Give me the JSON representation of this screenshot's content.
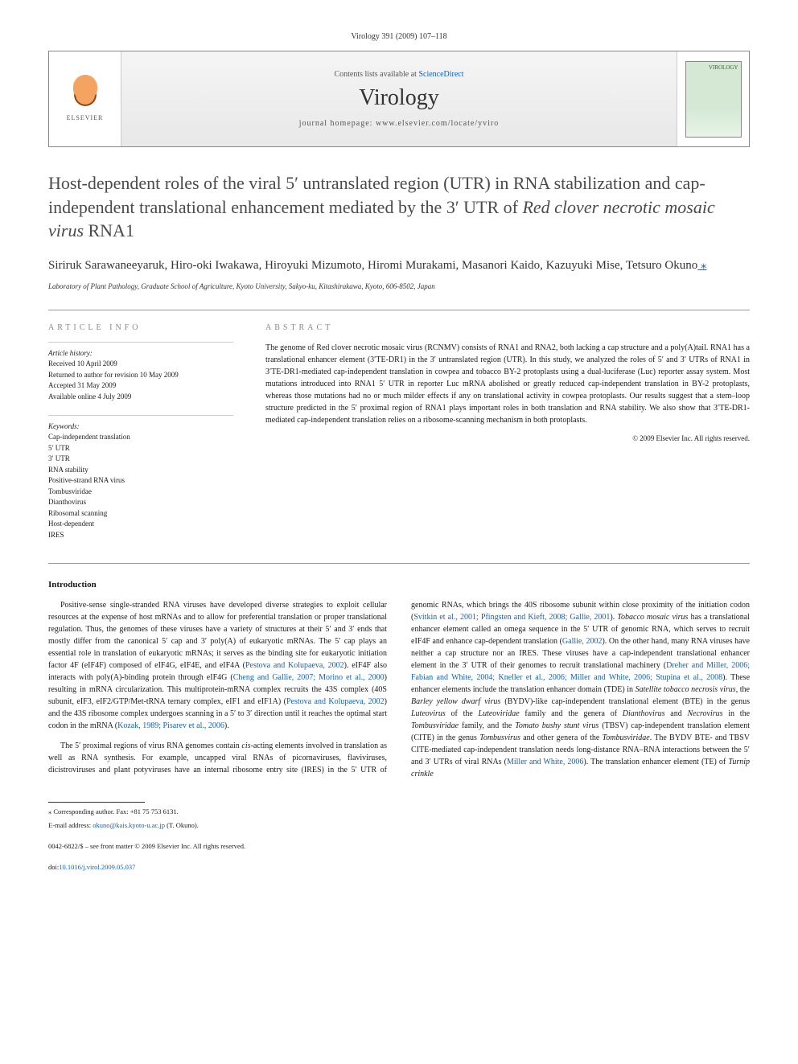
{
  "page_header": "Virology 391 (2009) 107–118",
  "banner": {
    "contents_prefix": "Contents lists available at ",
    "contents_link": "ScienceDirect",
    "journal_name": "Virology",
    "homepage_prefix": "journal homepage: ",
    "homepage_url": "www.elsevier.com/locate/yviro",
    "publisher_label": "ELSEVIER",
    "cover_label": "VIROLOGY"
  },
  "title_parts": {
    "pre": "Host-dependent roles of the viral 5′ untranslated region (UTR) in RNA stabilization and cap-independent translational enhancement mediated by the 3′ UTR of ",
    "italic": "Red clover necrotic mosaic virus",
    "post": " RNA1"
  },
  "authors": "Siriruk Sarawaneeyaruk, Hiro-oki Iwakawa, Hiroyuki Mizumoto, Hiromi Murakami, Masanori Kaido, Kazuyuki Mise, Tetsuro Okuno",
  "corr_author_marker": " ⁎",
  "affiliation": "Laboratory of Plant Pathology, Graduate School of Agriculture, Kyoto University, Sakyo-ku, Kitashirakawa, Kyoto, 606-8502, Japan",
  "article_info_label": "ARTICLE INFO",
  "abstract_label": "ABSTRACT",
  "history": {
    "label": "Article history:",
    "lines": [
      "Received 10 April 2009",
      "Returned to author for revision 10 May 2009",
      "Accepted 31 May 2009",
      "Available online 4 July 2009"
    ]
  },
  "keywords": {
    "label": "Keywords:",
    "items": [
      "Cap-independent translation",
      "5′ UTR",
      "3′ UTR",
      "RNA stability",
      "Positive-strand RNA virus",
      "Tombusviridae",
      "Dianthovirus",
      "Ribosomal scanning",
      "Host-dependent",
      "IRES"
    ]
  },
  "abstract": "The genome of Red clover necrotic mosaic virus (RCNMV) consists of RNA1 and RNA2, both lacking a cap structure and a poly(A)tail. RNA1 has a translational enhancer element (3′TE-DR1) in the 3′ untranslated region (UTR). In this study, we analyzed the roles of 5′ and 3′ UTRs of RNA1 in 3′TE-DR1-mediated cap-independent translation in cowpea and tobacco BY-2 protoplasts using a dual-luciferase (Luc) reporter assay system. Most mutations introduced into RNA1 5′ UTR in reporter Luc mRNA abolished or greatly reduced cap-independent translation in BY-2 protoplasts, whereas those mutations had no or much milder effects if any on translational activity in cowpea protoplasts. Our results suggest that a stem–loop structure predicted in the 5′ proximal region of RNA1 plays important roles in both translation and RNA stability. We also show that 3′TE-DR1-mediated cap-independent translation relies on a ribosome-scanning mechanism in both protoplasts.",
  "abstract_copyright": "© 2009 Elsevier Inc. All rights reserved.",
  "intro_heading": "Introduction",
  "intro_p1_pre": "Positive-sense single-stranded RNA viruses have developed diverse strategies to exploit cellular resources at the expense of host mRNAs and to allow for preferential translation or proper translational regulation. Thus, the genomes of these viruses have a variety of structures at their 5′ and 3′ ends that mostly differ from the canonical 5′ cap and 3′ poly(A) of eukaryotic mRNAs. The 5′ cap plays an essential role in translation of eukaryotic mRNAs; it serves as the binding site for eukaryotic initiation factor 4F (eIF4F) composed of eIF4G, eIF4E, and eIF4A (",
  "intro_p1_ref1": "Pestova and Kolupaeva, 2002",
  "intro_p1_mid1": "). eIF4F also interacts with poly(A)-binding protein through eIF4G (",
  "intro_p1_ref2": "Cheng and Gallie, 2007; Morino et al., 2000",
  "intro_p1_mid2": ") resulting in mRNA circularization. This multiprotein-mRNA complex recruits the 43S complex (40S subunit, eIF3, eIF2/GTP/Met-tRNA ternary complex, eIF1 and eIF1A) (",
  "intro_p1_ref3": "Pestova and Kolupaeva, 2002",
  "intro_p1_mid3": ") and the 43S ribosome complex undergoes scanning in a 5′ to 3′ direction until it reaches the optimal start codon in the mRNA (",
  "intro_p1_ref4": "Kozak, 1989; Pisarev et al., 2006",
  "intro_p1_end": ").",
  "intro_p2_pre": "The 5′ proximal regions of virus RNA genomes contain ",
  "intro_p2_cis": "cis",
  "intro_p2_mid": "-acting elements involved in translation as well as RNA synthesis. For example, uncapped viral RNAs of picornaviruses, flaviviruses, dicistroviruses and plant potyviruses have an internal ribosome entry site (IRES) in the 5′ UTR of genomic RNAs, which brings the 40S ribosome subunit within close proximity of the initiation codon (",
  "intro_p2_ref1": "Svitkin et al., 2001; Pfingsten and Kieft, 2008; Gallie, 2001",
  "intro_p2_mid2": "). ",
  "intro_p2_tmv": "Tobacco mosaic virus",
  "intro_p2_mid3": " has a translational enhancer element called an omega sequence in the 5′ UTR of genomic RNA, which serves to recruit eIF4F and enhance cap-dependent translation (",
  "intro_p2_ref2": "Gallie, 2002",
  "intro_p2_mid4": "). On the other hand, many RNA viruses have neither a cap structure nor an IRES. These viruses have a cap-independent translational enhancer element in the 3′ UTR of their genomes to recruit translational machinery (",
  "intro_p2_ref3": "Dreher and Miller, 2006; Fabian and White, 2004; Kneller et al., 2006; Miller and White, 2006; Stupina et al., 2008",
  "intro_p2_mid5": "). These enhancer elements include the translation enhancer domain (TDE) in ",
  "intro_p2_stnv": "Satellite tobacco necrosis virus",
  "intro_p2_mid6": ", the ",
  "intro_p2_bydv": "Barley yellow dwarf virus",
  "intro_p2_mid7": " (BYDV)-like cap-independent translational element (BTE) in the genus ",
  "intro_p2_luteo": "Luteovirus",
  "intro_p2_mid8": " of the ",
  "intro_p2_luteofam": "Luteoviridae",
  "intro_p2_mid9": " family and the genera of ",
  "intro_p2_diantho": "Dianthovirus",
  "intro_p2_mid10": " and ",
  "intro_p2_necro": "Necrovirus",
  "intro_p2_mid11": " in the ",
  "intro_p2_tombusfam": "Tombusviridae",
  "intro_p2_mid12": " family, and the ",
  "intro_p2_tbsv": "Tomato bushy stunt virus",
  "intro_p2_mid13": " (TBSV) cap-independent translation element (CITE) in the genus ",
  "intro_p2_tombus": "Tombusvirus",
  "intro_p2_mid14": " and other genera of the ",
  "intro_p2_tombusfam2": "Tombusviridae",
  "intro_p2_mid15": ". The BYDV BTE- and TBSV CITE-mediated cap-independent translation needs long-distance RNA–RNA interactions between the 5′ and 3′ UTRs of viral RNAs (",
  "intro_p2_ref4": "Miller and White, 2006",
  "intro_p2_mid16": "). The translation enhancer element (TE) of ",
  "intro_p2_tcv": "Turnip crinkle",
  "footnote_corr": "⁎ Corresponding author. Fax: +81 75 753 6131.",
  "footnote_email_label": "E-mail address: ",
  "footnote_email": "okuno@kais.kyoto-u.ac.jp",
  "footnote_email_suffix": " (T. Okuno).",
  "bottom_copyright": "0042-6822/$ – see front matter © 2009 Elsevier Inc. All rights reserved.",
  "bottom_doi_label": "doi:",
  "bottom_doi": "10.1016/j.virol.2009.05.037",
  "colors": {
    "link": "#1560b3",
    "text": "#1a1a1a",
    "muted": "#888888",
    "border": "#999999"
  }
}
